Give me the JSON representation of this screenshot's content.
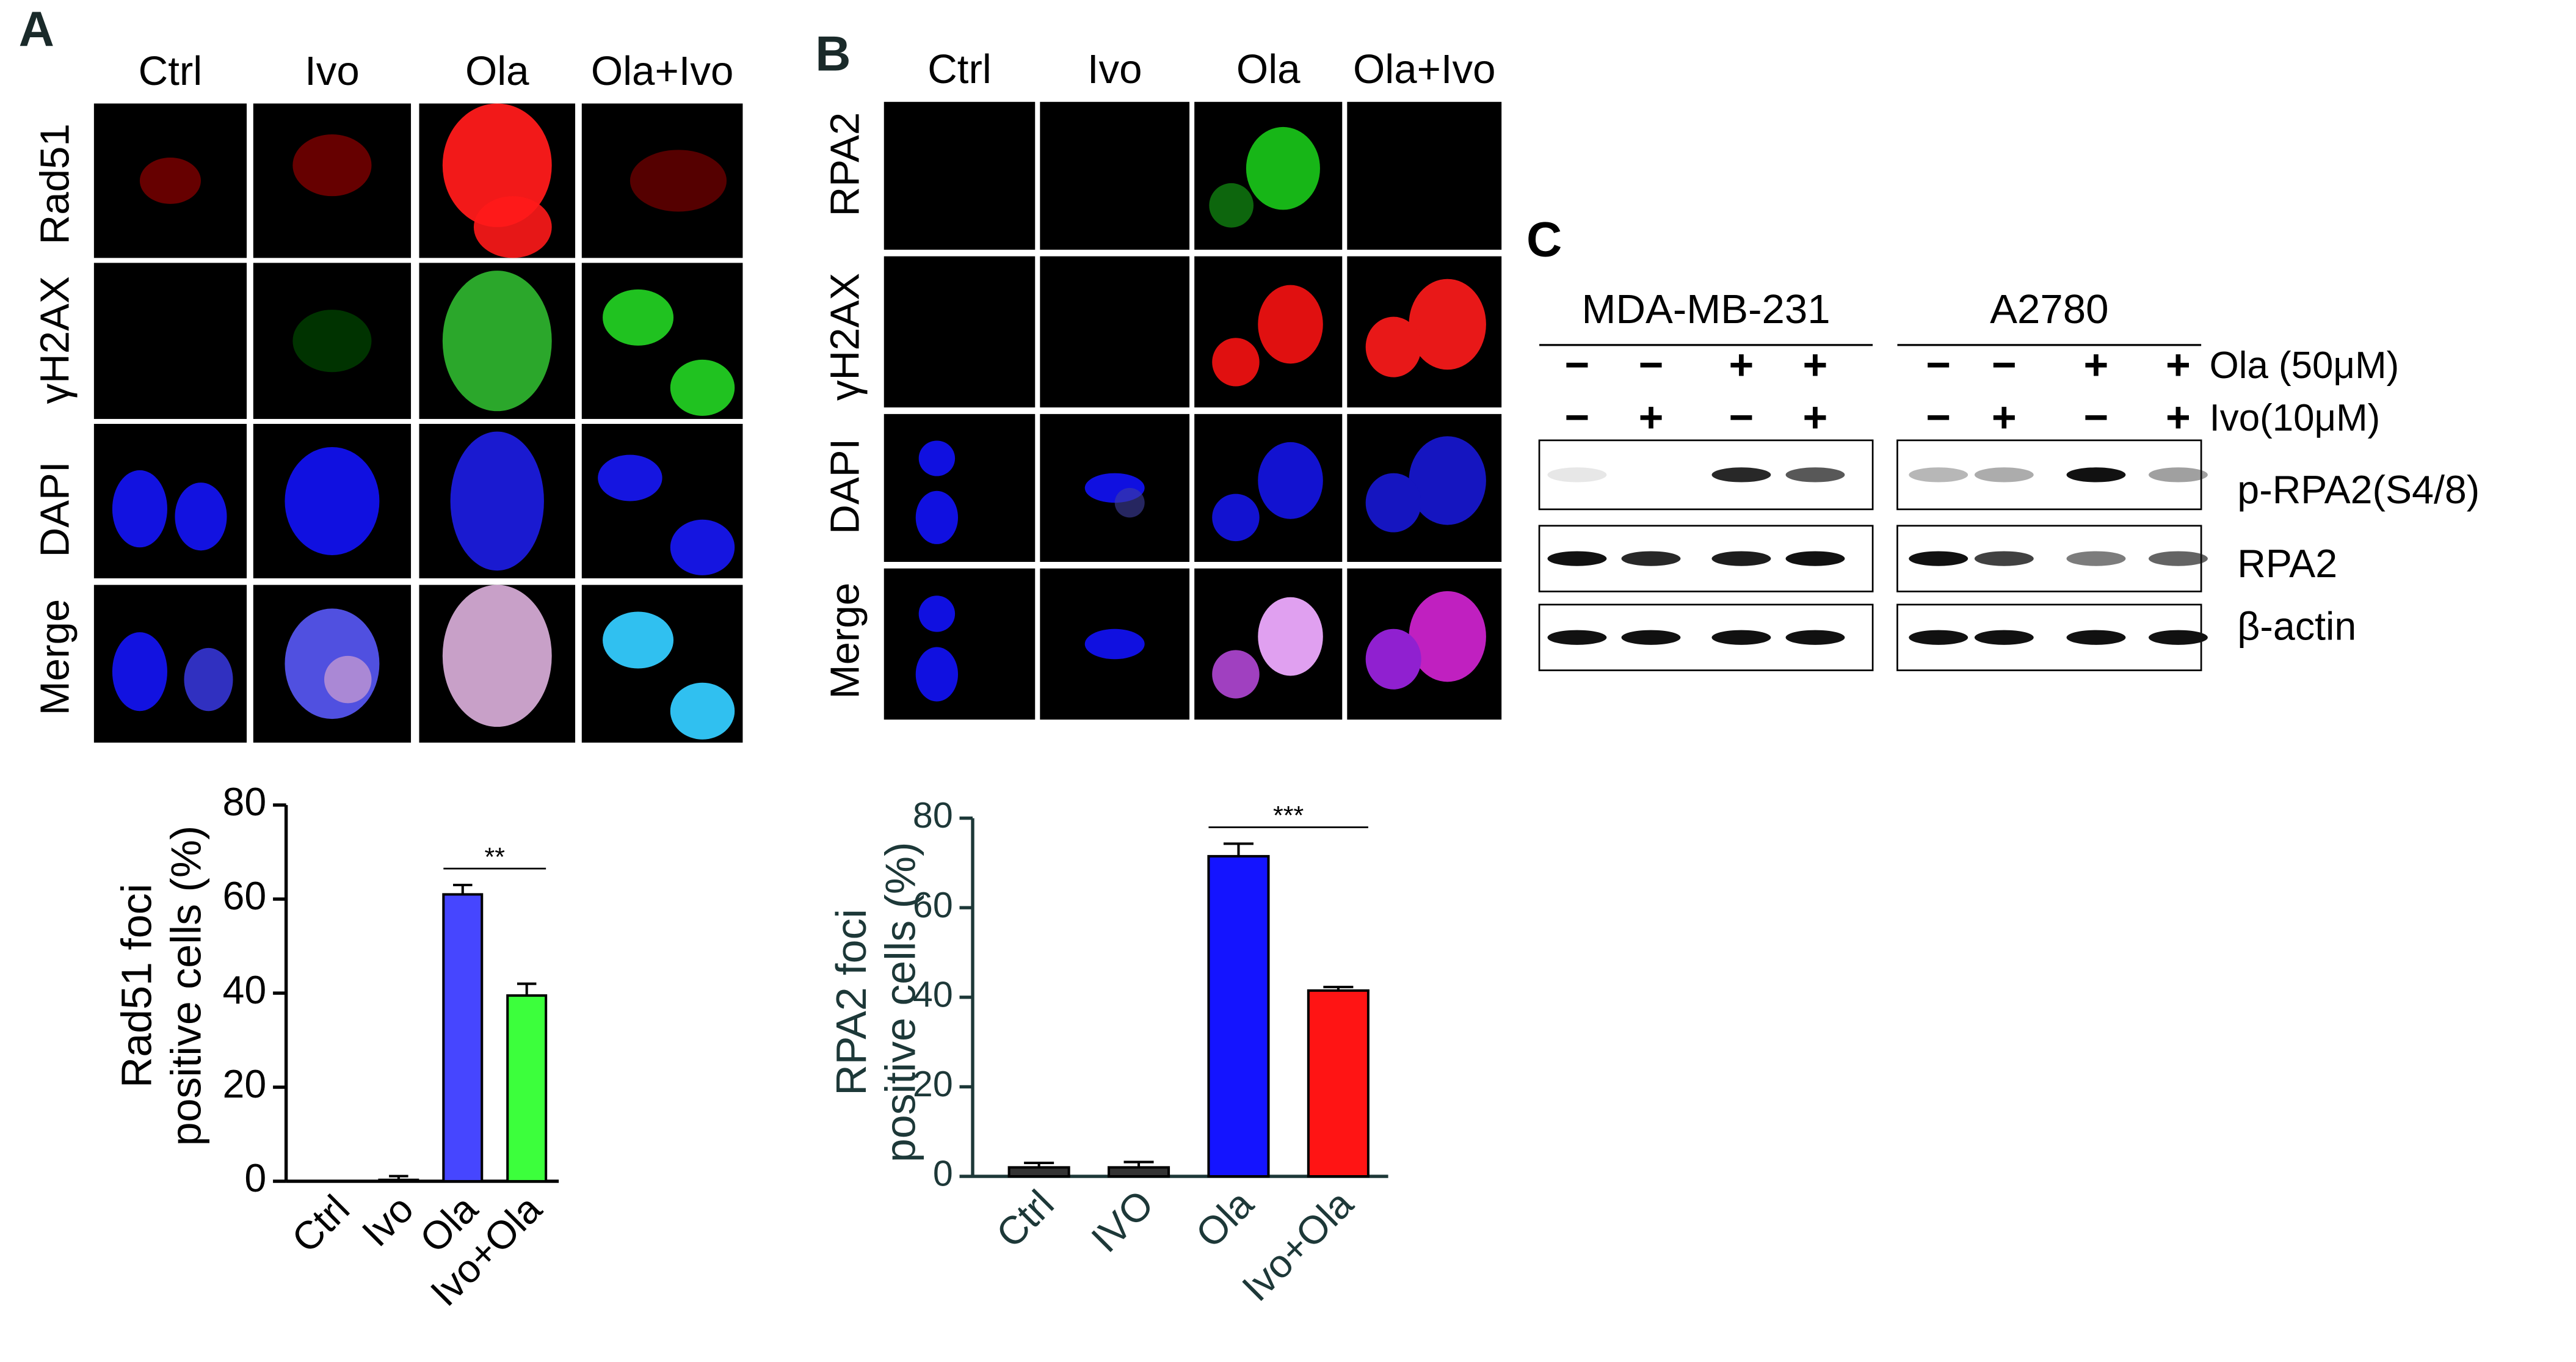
{
  "panel_a": {
    "label": "A",
    "columns": [
      "Ctrl",
      "Ivo",
      "Ola",
      "Ola+Ivo"
    ],
    "rows": [
      "Rad51",
      "γH2AX",
      "DAPI",
      "Merge"
    ]
  },
  "panel_b": {
    "label": "B",
    "columns": [
      "Ctrl",
      "Ivo",
      "Ola",
      "Ola+Ivo"
    ],
    "rows": [
      "RPA2",
      "γH2AX",
      "DAPI",
      "Merge"
    ]
  },
  "panel_c": {
    "label": "C",
    "cell_lines": [
      "MDA-MB-231",
      "A2780"
    ],
    "treatments": [
      {
        "name": "Ola (50μM)",
        "signs": [
          [
            "−",
            "−",
            "+",
            "+"
          ],
          [
            "−",
            "−",
            "+",
            "+"
          ]
        ]
      },
      {
        "name": "Ivo(10μM)",
        "signs": [
          [
            "−",
            "+",
            "−",
            "+"
          ],
          [
            "−",
            "+",
            "−",
            "+"
          ]
        ]
      }
    ],
    "blots": [
      "p-RPA2(S4/8)",
      "RPA2",
      "β-actin"
    ]
  },
  "chart_data": [
    {
      "type": "bar",
      "ylabel": [
        "Rad51 foci",
        "positive cells (%)"
      ],
      "categories": [
        "Ctrl",
        "Ivo",
        "Ola",
        "Ivo+Ola"
      ],
      "values": [
        0,
        0.3,
        61,
        39.5
      ],
      "errors": [
        0,
        0.8,
        2,
        2.5
      ],
      "colors": [
        "#000000",
        "#000000",
        "#4646ff",
        "#3cff3c"
      ],
      "ylim": [
        0,
        80
      ],
      "yticks": [
        0,
        20,
        40,
        60,
        80
      ],
      "significance": "**",
      "text_color": "#000000"
    },
    {
      "type": "bar",
      "ylabel": [
        "RPA2 foci",
        "positive cells (%)"
      ],
      "categories": [
        "Ctrl",
        "IVO",
        "Ola",
        "Ivo+Ola"
      ],
      "values": [
        2,
        2,
        71.5,
        41.5
      ],
      "errors": [
        1,
        1.2,
        2.8,
        0.8
      ],
      "colors": [
        "#333333",
        "#333333",
        "#1414ff",
        "#ff1414"
      ],
      "ylim": [
        0,
        80
      ],
      "yticks": [
        0,
        20,
        40,
        60,
        80
      ],
      "significance": "***",
      "text_color": "#1d3838"
    }
  ]
}
